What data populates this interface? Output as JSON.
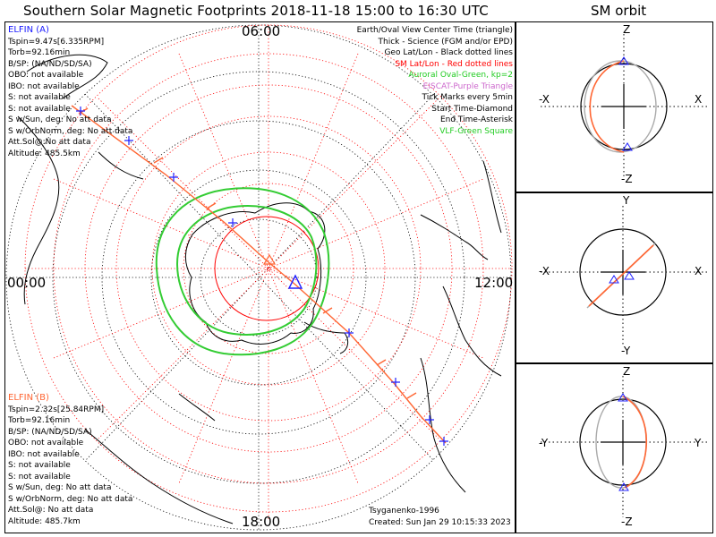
{
  "header": {
    "title": "Southern Solar Magnetic Footprints 2018-11-18 15:00 to 16:30 UTC",
    "orbit_title": "SM orbit"
  },
  "sat_a": {
    "name": "ELFIN (A)",
    "color": "#1a1aff",
    "lines": [
      "Tspin=9.47s[6.335RPM]",
      "Torb=92.16min",
      "B/SP: (NA/ND/SD/SA)",
      "OBO: not available",
      "IBO: not available",
      "S: not available",
      "S: not available",
      "S w/Sun, deg: No att data",
      "S w/OrbNorm, deg: No att data",
      "Att.Sol@:No att data",
      "Altitude: 485.5km"
    ]
  },
  "sat_b": {
    "name": "ELFIN (B)",
    "color": "#ff6633",
    "lines": [
      "Tspin=2.32s[25.84RPM]",
      "Torb=92.16min",
      "B/SP: (NA/ND/SD/SA)",
      "OBO: not available",
      "IBO: not available",
      "S: not available",
      "S: not available",
      "S w/Sun, deg: No att data",
      "S w/OrbNorm, deg: No att data",
      "Att.Sol@: No att data",
      "Altitude: 485.7km"
    ]
  },
  "legend": [
    {
      "text": "Earth/Oval View Center Time (triangle)",
      "color": "#000000"
    },
    {
      "text": "Thick - Science (FGM and/or EPD)",
      "color": "#000000"
    },
    {
      "text": "Geo Lat/Lon - Black dotted lines",
      "color": "#000000"
    },
    {
      "text": "SM Lat/Lon - Red dotted lines",
      "color": "#ff0000"
    },
    {
      "text": "Auroral Oval-Green, kp=2",
      "color": "#22cc22"
    },
    {
      "text": "EISCAT-Purple Triangle",
      "color": "#cc66cc"
    },
    {
      "text": "Tick Marks every 5min",
      "color": "#000000"
    },
    {
      "text": "Start Time-Diamond",
      "color": "#000000"
    },
    {
      "text": "End Time-Asterisk",
      "color": "#000000"
    },
    {
      "text": "VLF-Green Square",
      "color": "#22cc22"
    }
  ],
  "clock_labels": {
    "top": "06:00",
    "left": "00:00",
    "right": "12:00",
    "bottom": "18:00"
  },
  "footer": {
    "credit": "Tsyganenko-1996",
    "created": "Created: Sun Jan 29 10:15:33 2023"
  },
  "orbit_panels": [
    {
      "top": "Z",
      "bottom": "-Z",
      "left": "-X",
      "right": "X"
    },
    {
      "top": "Y",
      "bottom": "-Y",
      "left": "-X",
      "right": "X"
    },
    {
      "top": "Z",
      "bottom": "-Z",
      "left": "-Y",
      "right": "Y"
    }
  ],
  "colors": {
    "geo_grid": "#000000",
    "sm_grid": "#ff0000",
    "oval": "#33cc33",
    "track_a": "#1a1aff",
    "track_b": "#ff6633",
    "orbit_gray": "#999999"
  }
}
